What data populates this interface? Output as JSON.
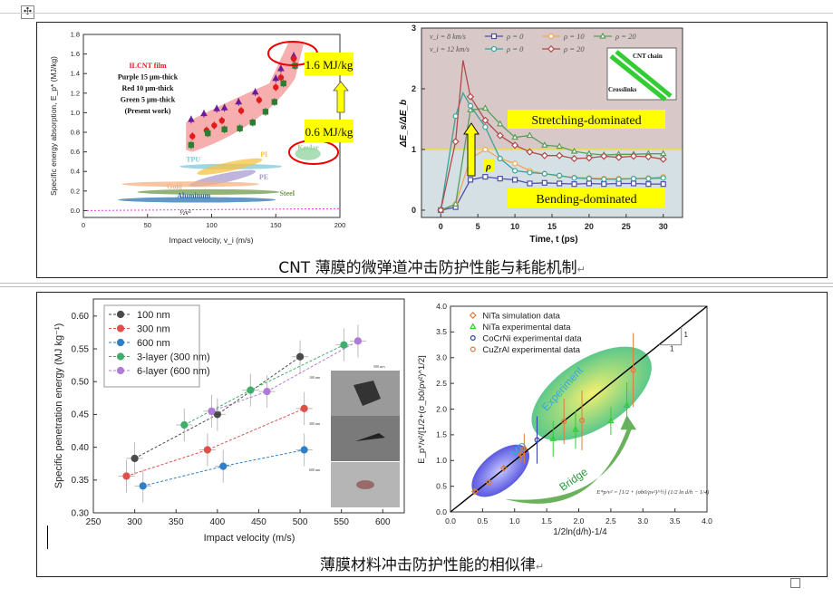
{
  "document": {
    "caption_1": "CNT 薄膜的微弹道冲击防护性能与耗能机制",
    "caption_2": "薄膜材料冲击防护性能的相似律",
    "paragraph_mark": "↵",
    "move_handle_icon": "move-cross-icon"
  },
  "chart_data": [
    {
      "type": "scatter",
      "title": "",
      "xlabel": "Impact velocity, v_i (m/s)",
      "ylabel": "Specific energy absorption, E_p* (MJ/kg)",
      "xlim": [
        0,
        200
      ],
      "ylim": [
        0,
        1.8
      ],
      "xticks": [
        0,
        50,
        100,
        150,
        200
      ],
      "yticks": [
        "0.0",
        "0.2",
        "0.4",
        "0.6",
        "0.8",
        "1.0",
        "1.2",
        "1.4",
        "1.6",
        "1.8"
      ],
      "legend_text": [
        "ILCNT film",
        "Purple 15 μm-thick",
        "Red 10 μm-thick",
        "Green 5 μm-thick",
        "(Present work)"
      ],
      "series": [
        {
          "name": "Purple 15 μm-thick",
          "color": "#6a1b9a",
          "marker": "triangle",
          "x": [
            84,
            94,
            104,
            110,
            121,
            134,
            150,
            154,
            164
          ],
          "y": [
            0.93,
            0.99,
            1.04,
            1.05,
            1.11,
            1.21,
            1.35,
            1.45,
            1.58
          ]
        },
        {
          "name": "Red 10 μm-thick",
          "color": "#e31a1c",
          "marker": "circle",
          "x": [
            85,
            96,
            102,
            108,
            123,
            137,
            150,
            154,
            164
          ],
          "y": [
            0.76,
            0.82,
            0.87,
            0.92,
            1.02,
            1.13,
            1.26,
            1.36,
            1.55
          ]
        },
        {
          "name": "Green 5 μm-thick",
          "color": "#2e7d32",
          "marker": "square",
          "x": [
            84,
            97,
            110,
            122,
            132,
            142,
            149,
            156,
            165
          ],
          "y": [
            0.67,
            0.79,
            0.83,
            0.84,
            0.9,
            1.01,
            1.11,
            1.3,
            1.48
          ]
        }
      ],
      "material_bands": [
        {
          "label": "TPU",
          "color": "#7ec8d8",
          "x": [
            75,
            155
          ],
          "y": 0.45
        },
        {
          "label": "PI",
          "color": "#f5c242",
          "x": [
            88,
            140
          ],
          "y": 0.45
        },
        {
          "label": "PE",
          "color": "#a99bd0",
          "x": [
            82,
            135
          ],
          "y": 0.33
        },
        {
          "label": "Gold",
          "color": "#f4b183",
          "x": [
            30,
            137
          ],
          "y": 0.27
        },
        {
          "label": "Steel",
          "color": "#6e9a4a",
          "x": [
            42,
            153
          ],
          "y": 0.19
        },
        {
          "label": "Aluminum",
          "color": "#2e75b6",
          "x": [
            27,
            150
          ],
          "y": 0.11
        },
        {
          "label": "Kevlar",
          "color": "#8fd39b",
          "x": [
            165,
            185
          ],
          "y": 0.58
        }
      ],
      "reference_line_label": "½v²",
      "callouts": {
        "high": "1.6 MJ/kg",
        "low": "0.6 MJ/kg"
      }
    },
    {
      "type": "line",
      "xlabel": "Time, t (ps)",
      "ylabel": "ΔE_s/ΔE_b",
      "xlim": [
        0,
        30
      ],
      "ylim": [
        0,
        3
      ],
      "xticks": [
        0,
        5,
        10,
        15,
        20,
        25,
        30
      ],
      "yticks": [
        0,
        1,
        2,
        3
      ],
      "legend_rows": [
        "v_i = 8 km/s",
        "v_i = 12 km/s"
      ],
      "series": [
        {
          "name": "ρ = 0",
          "group": "v_i = 8 km/s",
          "color": "#4f4fa8",
          "marker": "square",
          "x": [
            0,
            2,
            4,
            6,
            8,
            10,
            12,
            14,
            16,
            18,
            20,
            22,
            24,
            26,
            28,
            30
          ],
          "y": [
            0,
            0.05,
            0.5,
            0.55,
            0.52,
            0.5,
            0.44,
            0.45,
            0.44,
            0.43,
            0.44,
            0.43,
            0.44,
            0.44,
            0.43,
            0.43
          ]
        },
        {
          "name": "ρ = 10",
          "group": "v_i = 8 km/s",
          "color": "#f2a65a",
          "marker": "circle",
          "x": [
            0,
            2,
            4,
            6,
            8,
            10,
            12,
            14,
            16,
            18,
            20,
            22,
            24,
            26,
            28,
            30
          ],
          "y": [
            0,
            0.1,
            0.85,
            1.0,
            0.85,
            0.77,
            0.65,
            0.6,
            0.56,
            0.54,
            0.53,
            0.52,
            0.52,
            0.52,
            0.53,
            0.55
          ]
        },
        {
          "name": "ρ = 20",
          "group": "v_i = 8 km/s",
          "color": "#5a9e5a",
          "marker": "triangle",
          "x": [
            0,
            2,
            4,
            6,
            8,
            10,
            12,
            14,
            16,
            18,
            20,
            22,
            24,
            26,
            28,
            30
          ],
          "y": [
            0,
            0.1,
            1.65,
            1.68,
            1.42,
            1.2,
            1.23,
            1.07,
            1.05,
            0.97,
            0.93,
            0.91,
            0.92,
            0.92,
            0.93,
            0.93
          ]
        },
        {
          "name": "ρ = 0",
          "group": "v_i = 12 km/s",
          "color": "#3aa39a",
          "marker": "circle",
          "x": [
            0,
            2,
            3,
            4,
            6,
            8,
            10,
            12,
            14,
            16,
            18,
            20,
            22,
            24,
            26,
            28,
            30
          ],
          "y": [
            0,
            1.55,
            1.93,
            1.72,
            1.37,
            0.85,
            0.65,
            0.62,
            0.6,
            0.57,
            0.53,
            0.52,
            0.51,
            0.51,
            0.52,
            0.52,
            0.53
          ]
        },
        {
          "name": "ρ = 20",
          "group": "v_i = 12 km/s",
          "color": "#b24a4a",
          "marker": "diamond",
          "x": [
            0,
            2,
            3,
            4,
            6,
            8,
            10,
            12,
            14,
            16,
            18,
            20,
            22,
            24,
            26,
            28,
            30
          ],
          "y": [
            0,
            1.13,
            2.47,
            1.87,
            1.48,
            1.23,
            1.07,
            0.96,
            0.9,
            0.9,
            0.85,
            0.86,
            0.89,
            0.87,
            0.89,
            0.88,
            0.84
          ]
        }
      ],
      "threshold": 1,
      "region_labels": {
        "upper": "Stretching-dominated",
        "lower": "Bending-dominated"
      },
      "arrow_label": "ρ",
      "inset_labels": {
        "chain": "CNT chain",
        "links": "Crosslinks"
      }
    },
    {
      "type": "scatter",
      "xlabel": "Impact velocity (m/s)",
      "ylabel": "Specific penetration energy (MJ kg⁻¹)",
      "xlim": [
        250,
        600
      ],
      "ylim": [
        0.3,
        0.6
      ],
      "xticks": [
        250,
        300,
        350,
        400,
        450,
        500,
        550,
        600
      ],
      "yticks": [
        "0.30",
        "0.35",
        "0.40",
        "0.45",
        "0.50",
        "0.55",
        "0.60"
      ],
      "series": [
        {
          "name": "100 nm",
          "color": "#4a4a4a",
          "x": [
            300,
            400,
            500
          ],
          "y": [
            0.383,
            0.45,
            0.538
          ]
        },
        {
          "name": "300 nm",
          "color": "#e0504a",
          "x": [
            290,
            388,
            505
          ],
          "y": [
            0.356,
            0.396,
            0.459
          ]
        },
        {
          "name": "600 nm",
          "color": "#2f7fc8",
          "x": [
            310,
            407,
            505
          ],
          "y": [
            0.341,
            0.371,
            0.396
          ]
        },
        {
          "name": "3-layer (300 nm)",
          "color": "#3fae6a",
          "x": [
            360,
            440,
            553
          ],
          "y": [
            0.434,
            0.487,
            0.556
          ]
        },
        {
          "name": "6-layer (600 nm)",
          "color": "#b07ad8",
          "x": [
            393,
            460,
            570
          ],
          "y": [
            0.455,
            0.485,
            0.562
          ]
        }
      ],
      "y_error": 0.025,
      "x_error": 10,
      "inset_labels": [
        "500 m/s",
        "100 nm",
        "300 nm",
        "600 nm"
      ]
    },
    {
      "type": "scatter",
      "xlabel": "1/2ln(d/h)-1/4",
      "ylabel": "E_p*/v²/[1/2+(σ_b0/ρv²)^1/2]",
      "xlim": [
        0,
        4
      ],
      "ylim": [
        0,
        4
      ],
      "xticks": [
        "0.0",
        "0.5",
        "1.0",
        "1.5",
        "2.0",
        "2.5",
        "3.0",
        "3.5",
        "4.0"
      ],
      "yticks": [
        "0.0",
        "0.5",
        "1.0",
        "1.5",
        "2.0",
        "2.5",
        "3.0",
        "3.5",
        "4.0"
      ],
      "series": [
        {
          "name": "NiTa simulation data",
          "color": "#e07b39",
          "marker": "diamond",
          "x": [
            0.38,
            0.6,
            0.83,
            1.1
          ],
          "y": [
            0.4,
            0.58,
            0.85,
            1.12
          ],
          "err": [
            0.04,
            0.04,
            0.05,
            0.15
          ]
        },
        {
          "name": "NiTa experimental data",
          "color": "#33cc33",
          "marker": "triangle",
          "x": [
            1.6,
            1.95,
            2.5,
            2.75
          ],
          "y": [
            1.42,
            1.6,
            1.77,
            2.07
          ],
          "err": [
            0.35,
            0.37,
            0.27,
            0.45
          ]
        },
        {
          "name": "CoCrNi experimental data",
          "color": "#2b3fa8",
          "marker": "circle",
          "x": [
            1.35
          ],
          "y": [
            1.4
          ],
          "err": [
            0.46
          ]
        },
        {
          "name": "CuZrAl experimental data",
          "color": "#e07b39",
          "marker": "circle",
          "x": [
            1.15,
            1.77,
            2.05,
            2.85
          ],
          "y": [
            1.23,
            1.76,
            1.78,
            2.76
          ],
          "err": [
            0.29,
            0.44,
            0.58,
            0.72
          ]
        }
      ],
      "fit_line": {
        "slope": 1,
        "label_rise": "1",
        "label_run": "1"
      },
      "annotations": {
        "md": "MD",
        "experiment": "Experiment",
        "bridge": "Bridge"
      },
      "formula": "E*p/v² = [1/2 + (σb0/ρv²)^½] (1/2 ln d/h − 1/4)"
    }
  ]
}
